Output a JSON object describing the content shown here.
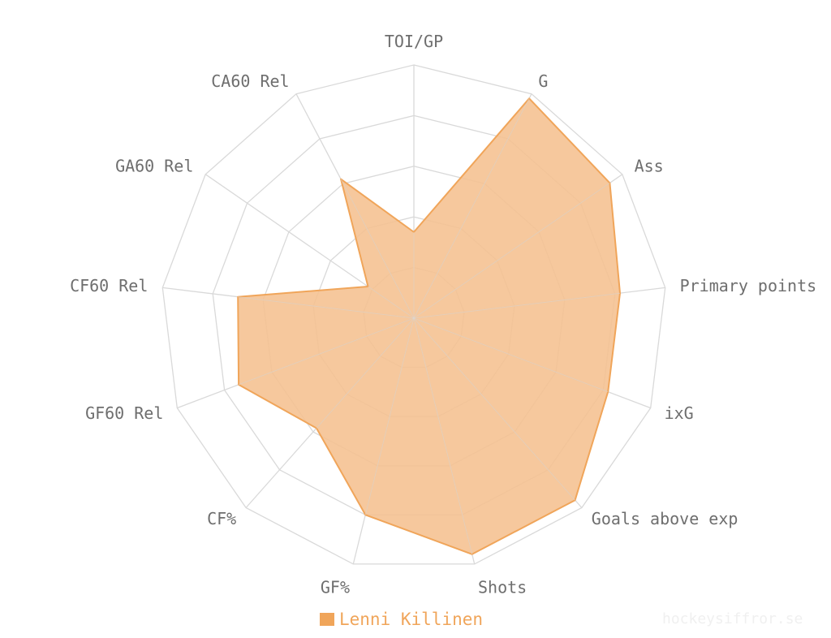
{
  "chart_data": {
    "type": "radar",
    "title": "",
    "axes": [
      "TOI/GP",
      "G",
      "Ass",
      "Primary points",
      "ixG",
      "Goals above exp",
      "Shots",
      "GF%",
      "CF%",
      "GF60 Rel",
      "CF60 Rel",
      "GA60 Rel",
      "CA60 Rel"
    ],
    "rlim": [
      0,
      1
    ],
    "rings": 5,
    "grid": true,
    "legend_position": "bottom-center",
    "series": [
      {
        "name": "Lenni Killinen",
        "values": [
          0.34,
          0.98,
          0.94,
          0.82,
          0.82,
          0.96,
          0.96,
          0.8,
          0.58,
          0.74,
          0.7,
          0.22,
          0.62
        ]
      }
    ]
  },
  "colors": {
    "series_stroke": "#f0a55a",
    "series_fill": "#f5c08f",
    "legend_swatch": "#f0a55a",
    "grid": "#d9d9d9",
    "label": "#6e6e6e"
  },
  "watermark": "hockeysiffror.se"
}
